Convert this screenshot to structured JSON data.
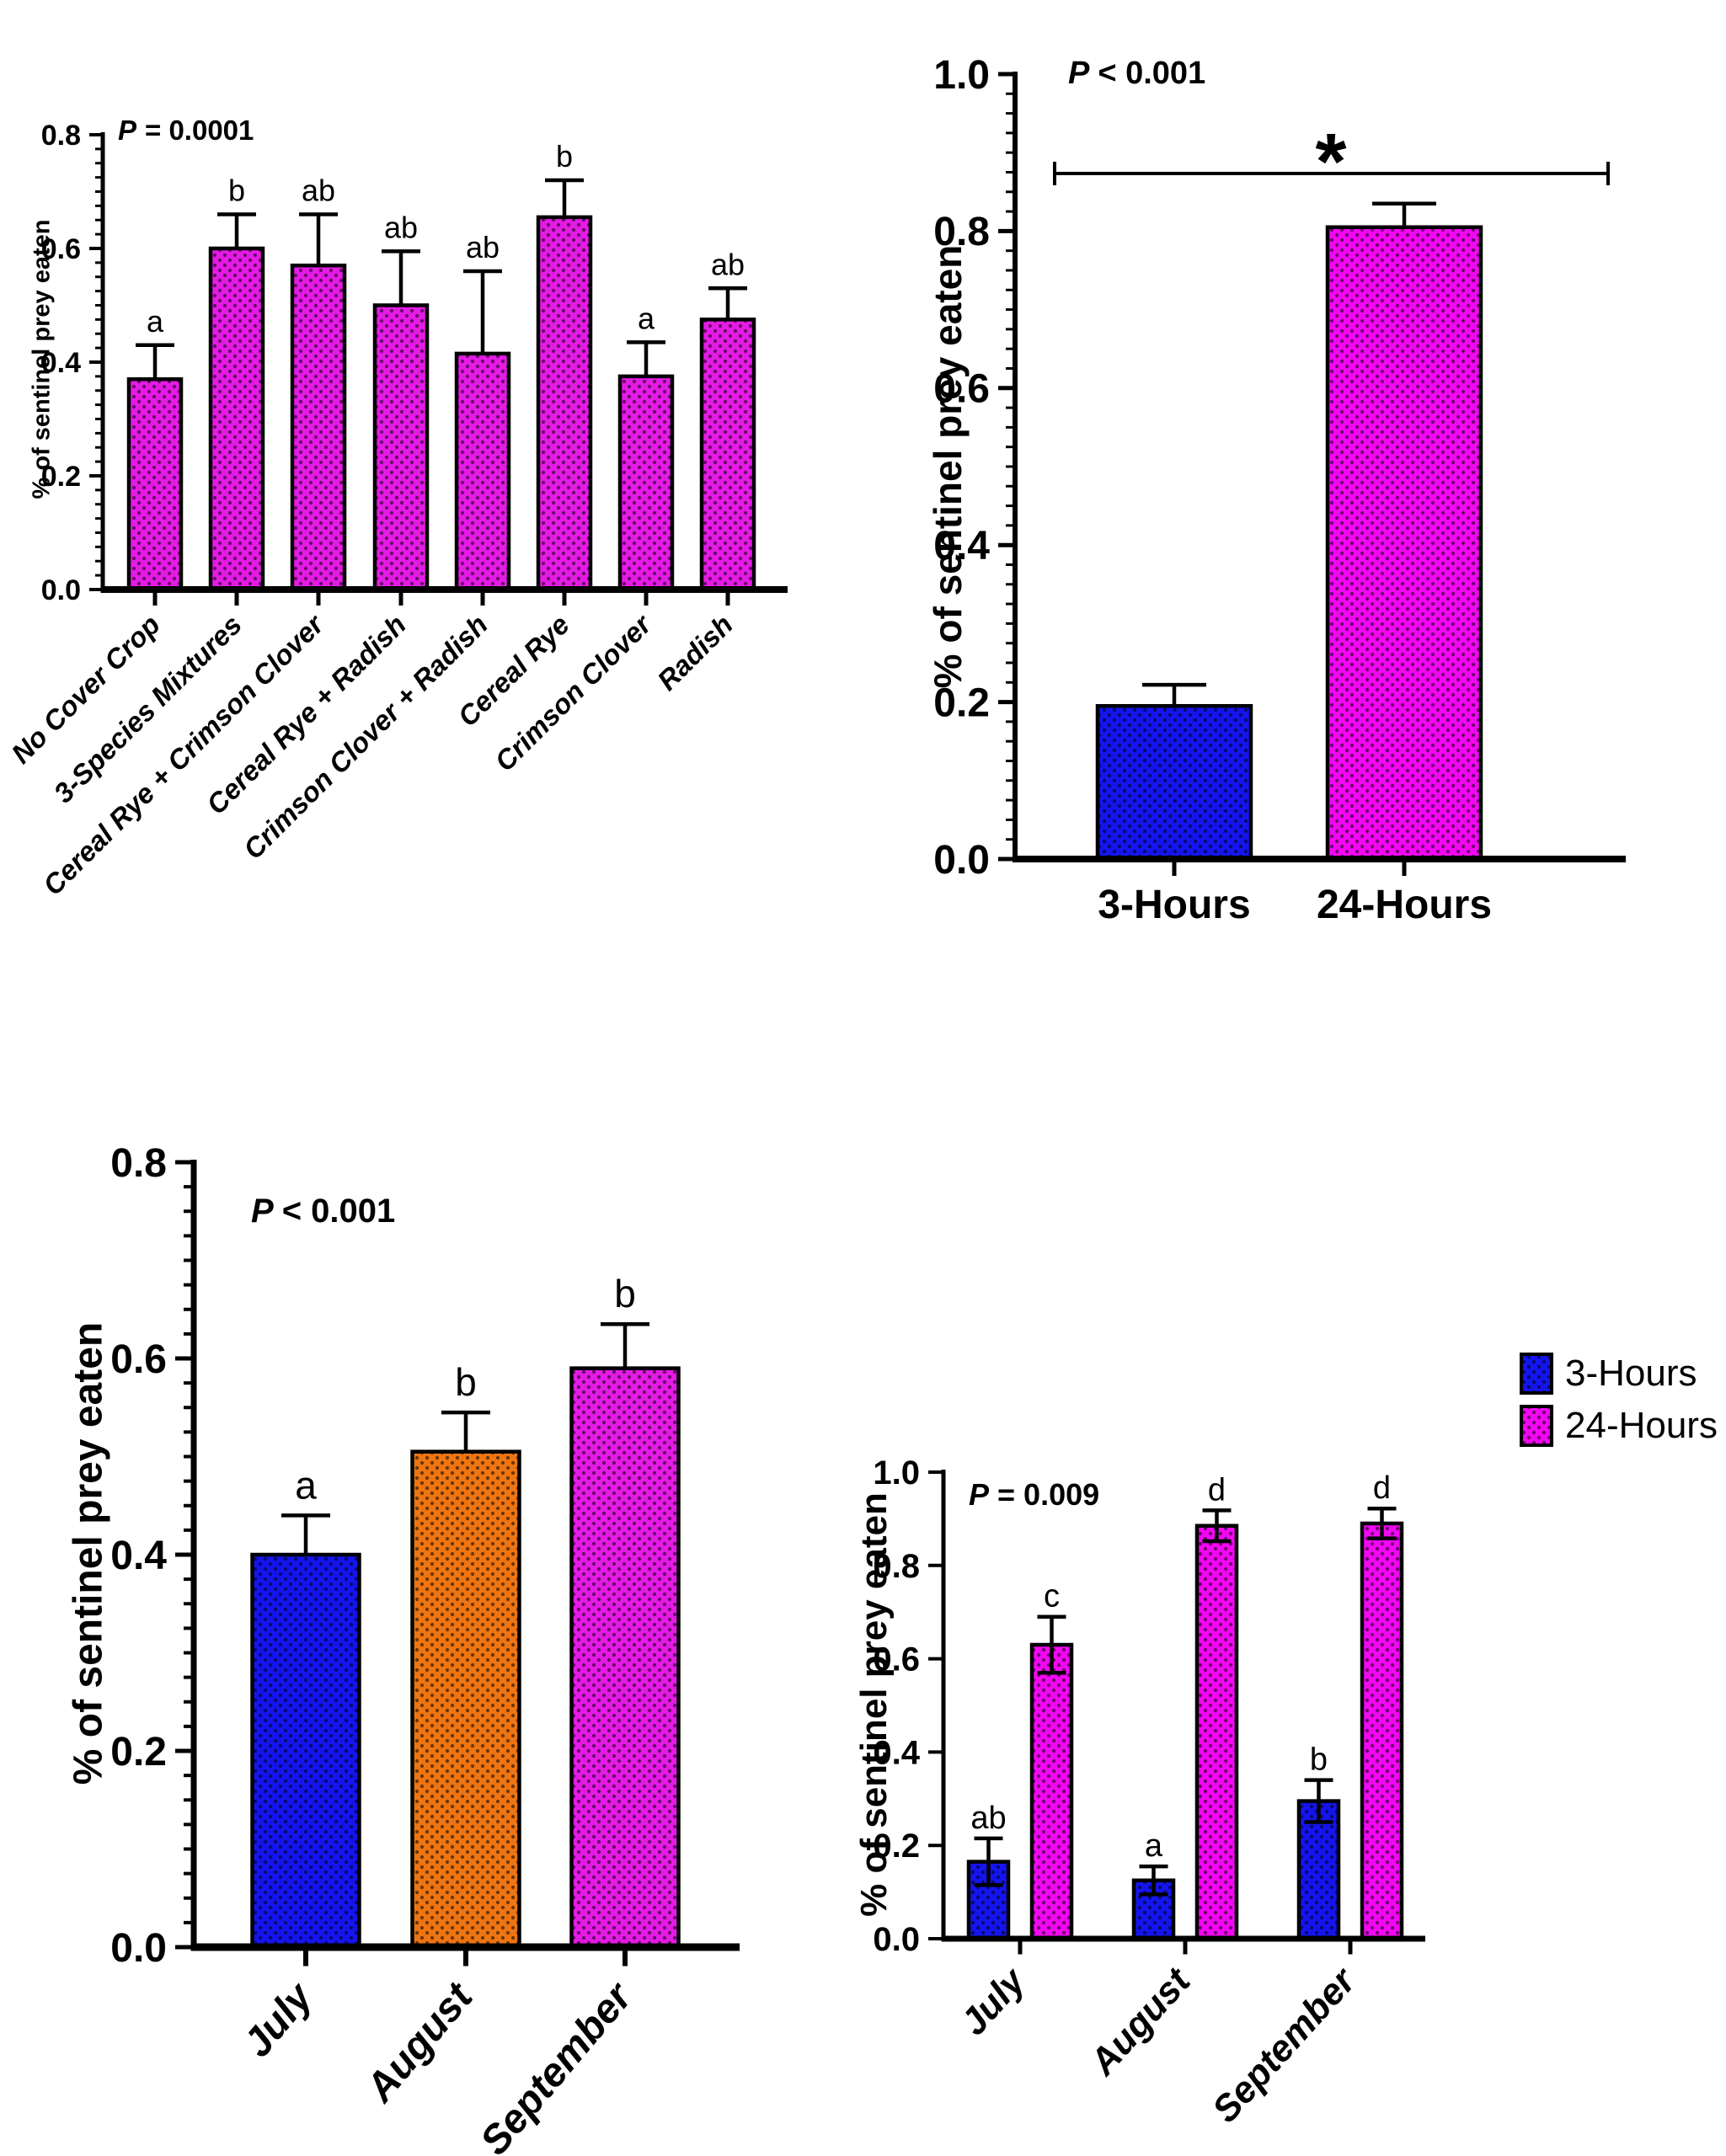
{
  "figure": {
    "background": "#FFFFFF"
  },
  "colors": {
    "blue": "#1414EE",
    "magenta": "#E41BE4",
    "magenta_bright": "#F207F2",
    "orange": "#EE7512",
    "axis": "#000000"
  },
  "legend": {
    "items": [
      {
        "label": "3-Hours",
        "color": "blue"
      },
      {
        "label": "24-Hours",
        "color": "magenta_bright"
      }
    ]
  },
  "chart_data": [
    {
      "id": "panel-a",
      "type": "bar",
      "p": {
        "sym": "P",
        "rest": "= 0.0001"
      },
      "ylabel": "% of sentinel prey eaten",
      "ylim": [
        0,
        0.8
      ],
      "yticks": [
        "0.0",
        "0.2",
        "0.4",
        "0.6",
        "0.8"
      ],
      "categories": [
        "No Cover Crop",
        "3-Species Mixtures",
        "Cereal Rye + Crimson Clover",
        "Cereal Rye + Radish",
        "Crimson Clover + Radish",
        "Cereal Rye",
        "Crimson Clover",
        "Radish"
      ],
      "values": [
        0.37,
        0.6,
        0.57,
        0.5,
        0.415,
        0.655,
        0.375,
        0.475
      ],
      "errors": [
        0.06,
        0.06,
        0.09,
        0.095,
        0.145,
        0.065,
        0.06,
        0.055
      ],
      "letters": [
        "a",
        "b",
        "ab",
        "ab",
        "ab",
        "b",
        "a",
        "ab"
      ],
      "bar_color": "magenta",
      "error_direction": "up"
    },
    {
      "id": "panel-b",
      "type": "bar",
      "p": {
        "sym": "P",
        "rest": "< 0.001"
      },
      "ylabel": "% of sentinel prey eaten",
      "ylim": [
        0,
        1.0
      ],
      "yticks": [
        "0.0",
        "0.2",
        "0.4",
        "0.6",
        "0.8",
        "1.0"
      ],
      "categories": [
        "3-Hours",
        "24-Hours"
      ],
      "values": [
        0.195,
        0.805
      ],
      "errors": [
        0.027,
        0.03
      ],
      "letters": [],
      "bar_colors": [
        "blue",
        "magenta_bright"
      ],
      "significance": "*",
      "error_direction": "up"
    },
    {
      "id": "panel-c",
      "type": "bar",
      "p": {
        "sym": "P",
        "rest": "< 0.001"
      },
      "ylabel": "% of sentinel prey eaten",
      "ylim": [
        0,
        0.8
      ],
      "yticks": [
        "0.0",
        "0.2",
        "0.4",
        "0.6",
        "0.8"
      ],
      "categories": [
        "July",
        "August",
        "September"
      ],
      "values": [
        0.4,
        0.505,
        0.59
      ],
      "errors": [
        0.04,
        0.04,
        0.045
      ],
      "letters": [
        "a",
        "b",
        "b"
      ],
      "bar_colors": [
        "blue",
        "orange",
        "magenta"
      ],
      "error_direction": "up"
    },
    {
      "id": "panel-d",
      "type": "bar",
      "p": {
        "sym": "P",
        "rest": "= 0.009"
      },
      "ylabel": "% of sentinel prey eaten",
      "ylim": [
        0,
        1.0
      ],
      "yticks": [
        "0.0",
        "0.2",
        "0.4",
        "0.6",
        "0.8",
        "1.0"
      ],
      "categories": [
        "July",
        "August",
        "September"
      ],
      "series": [
        {
          "name": "3-Hours",
          "color": "blue",
          "values": [
            0.165,
            0.125,
            0.295
          ],
          "errors": [
            0.05,
            0.03,
            0.045
          ],
          "letters": [
            "ab",
            "a",
            "b"
          ]
        },
        {
          "name": "24-Hours",
          "color": "magenta_bright",
          "values": [
            0.63,
            0.885,
            0.89
          ],
          "errors": [
            0.06,
            0.033,
            0.032
          ],
          "letters": [
            "c",
            "d",
            "d"
          ]
        }
      ],
      "error_direction": "both"
    }
  ]
}
